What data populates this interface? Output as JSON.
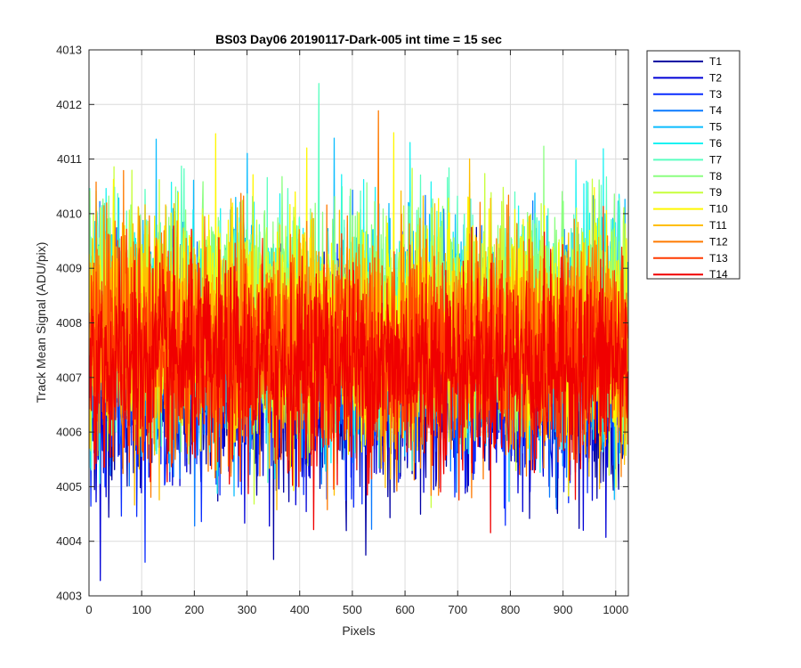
{
  "chart_data": {
    "type": "line",
    "title": "BS03 Day06 20190117-Dark-005 int time = 15 sec",
    "xlabel": "Pixels",
    "ylabel": "Track Mean Signal (ADU/pix)",
    "xlim": [
      0,
      1024
    ],
    "ylim": [
      4003,
      4013
    ],
    "xticks": [
      0,
      100,
      200,
      300,
      400,
      500,
      600,
      700,
      800,
      900,
      1000
    ],
    "yticks": [
      4003,
      4004,
      4005,
      4006,
      4007,
      4008,
      4009,
      4010,
      4011,
      4012,
      4013
    ],
    "grid": true,
    "legend_position": "outside-top-right",
    "series": [
      {
        "name": "T1",
        "color": "#0000A3",
        "mean": 4006.8,
        "std": 0.9
      },
      {
        "name": "T2",
        "color": "#0000D6",
        "mean": 4006.9,
        "std": 0.9
      },
      {
        "name": "T3",
        "color": "#0A2DFF",
        "mean": 4007.0,
        "std": 0.9
      },
      {
        "name": "T4",
        "color": "#0A7AFF",
        "mean": 4007.6,
        "std": 1.0
      },
      {
        "name": "T5",
        "color": "#0ABCFF",
        "mean": 4007.8,
        "std": 1.0
      },
      {
        "name": "T6",
        "color": "#1AF2F2",
        "mean": 4008.0,
        "std": 1.0
      },
      {
        "name": "T7",
        "color": "#5AFFC0",
        "mean": 4008.1,
        "std": 1.0
      },
      {
        "name": "T8",
        "color": "#8BFF80",
        "mean": 4008.2,
        "std": 1.0
      },
      {
        "name": "T9",
        "color": "#C7FF3C",
        "mean": 4008.0,
        "std": 1.0
      },
      {
        "name": "T10",
        "color": "#FFF700",
        "mean": 4007.9,
        "std": 1.0
      },
      {
        "name": "T11",
        "color": "#FFBE00",
        "mean": 4007.7,
        "std": 1.0
      },
      {
        "name": "T12",
        "color": "#FF7A00",
        "mean": 4007.6,
        "std": 1.0
      },
      {
        "name": "T13",
        "color": "#FF3A00",
        "mean": 4007.4,
        "std": 0.9
      },
      {
        "name": "T14",
        "color": "#F00000",
        "mean": 4007.2,
        "std": 0.9
      }
    ]
  }
}
